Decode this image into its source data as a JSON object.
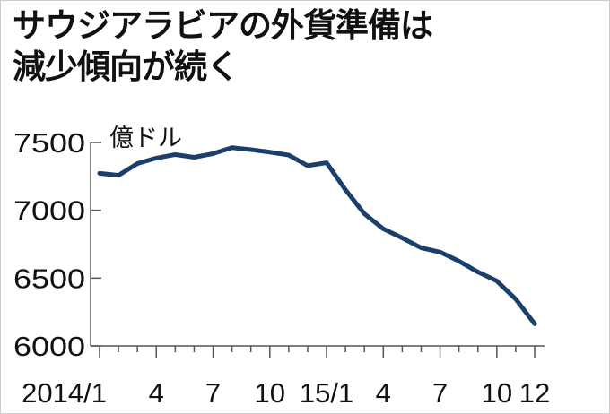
{
  "title_line1": "サウジアラビアの外貨準備は",
  "title_line2": "減少傾向が続く",
  "chart_data": {
    "type": "line",
    "title": "サウジアラビアの外貨準備は減少傾向が続く",
    "ylabel": "億ドル",
    "xlabel": "",
    "ylim": [
      6000,
      7500
    ],
    "yticks": [
      6000,
      6500,
      7000,
      7500
    ],
    "x": [
      "2014/1",
      "2014/2",
      "2014/3",
      "2014/4",
      "2014/5",
      "2014/6",
      "2014/7",
      "2014/8",
      "2014/9",
      "2014/10",
      "2014/11",
      "2014/12",
      "2015/1",
      "2015/2",
      "2015/3",
      "2015/4",
      "2015/5",
      "2015/6",
      "2015/7",
      "2015/8",
      "2015/9",
      "2015/10",
      "2015/11",
      "2015/12"
    ],
    "xtick_labels": [
      {
        "index": 0,
        "label": "2014/1"
      },
      {
        "index": 3,
        "label": "4"
      },
      {
        "index": 6,
        "label": "7"
      },
      {
        "index": 9,
        "label": "10"
      },
      {
        "index": 12,
        "label": "15/1"
      },
      {
        "index": 15,
        "label": "4"
      },
      {
        "index": 18,
        "label": "7"
      },
      {
        "index": 21,
        "label": "10"
      },
      {
        "index": 23,
        "label": "12"
      }
    ],
    "series": [
      {
        "name": "外貨準備",
        "color": "#1b3f6b",
        "values": [
          7273,
          7258,
          7345,
          7385,
          7411,
          7391,
          7418,
          7462,
          7447,
          7429,
          7407,
          7329,
          7351,
          7151,
          6974,
          6863,
          6796,
          6723,
          6692,
          6625,
          6545,
          6479,
          6345,
          6163
        ]
      }
    ],
    "grid": false
  }
}
